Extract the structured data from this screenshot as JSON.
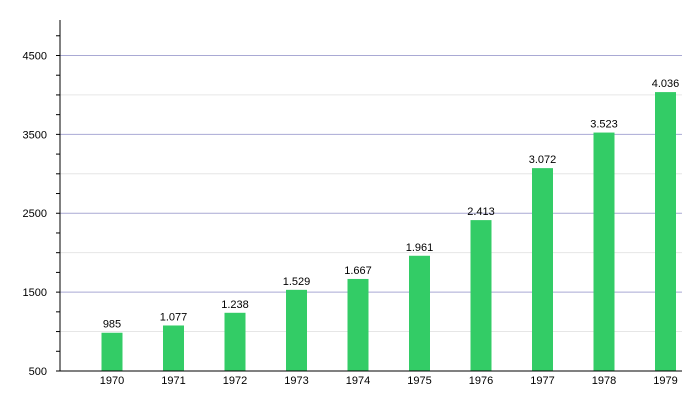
{
  "chart_data": {
    "type": "bar",
    "categories": [
      "1970",
      "1971",
      "1972",
      "1973",
      "1974",
      "1975",
      "1976",
      "1977",
      "1978",
      "1979"
    ],
    "values": [
      985,
      1077,
      1238,
      1529,
      1667,
      1961,
      2413,
      3072,
      3523,
      4036
    ],
    "value_labels": [
      "985",
      "1.077",
      "1.238",
      "1.529",
      "1.667",
      "1.961",
      "2.413",
      "3.072",
      "3.523",
      "4.036"
    ],
    "title": "",
    "xlabel": "",
    "ylabel": "",
    "ylim": [
      500,
      4950
    ],
    "y_ticks": [
      500,
      1500,
      2500,
      3500,
      4500
    ],
    "y_tick_labels": [
      "500",
      "1500",
      "2500",
      "3500",
      "4500"
    ],
    "grid": true,
    "colors": {
      "bar": "#33cc66",
      "grid_major": "#a9a9d4",
      "grid_minor": "#e6e6e6",
      "axis": "#000000"
    }
  }
}
